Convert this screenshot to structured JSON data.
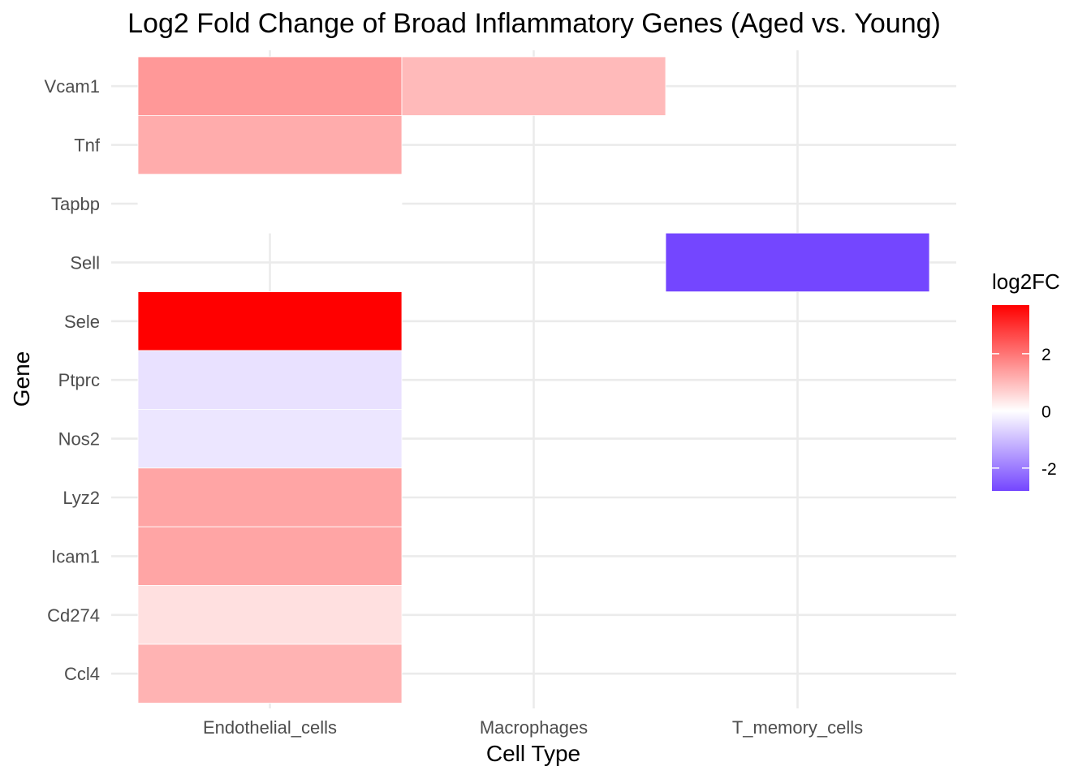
{
  "chart_data": {
    "type": "heatmap",
    "title": "Log2 Fold Change of Broad Inflammatory Genes (Aged vs. Young)",
    "xlabel": "Cell Type",
    "ylabel": "Gene",
    "x_categories": [
      "Endothelial_cells",
      "Macrophages",
      "T_memory_cells"
    ],
    "y_categories": [
      "Vcam1",
      "Tnf",
      "Tapbp",
      "Sell",
      "Sele",
      "Ptprc",
      "Nos2",
      "Lyz2",
      "Icam1",
      "Cd274",
      "Ccl4"
    ],
    "cells": [
      {
        "x": "Endothelial_cells",
        "y": "Vcam1",
        "value": 1.5
      },
      {
        "x": "Macrophages",
        "y": "Vcam1",
        "value": 1.0
      },
      {
        "x": "Endothelial_cells",
        "y": "Tnf",
        "value": 1.2
      },
      {
        "x": "Endothelial_cells",
        "y": "Tapbp",
        "value": 0.0
      },
      {
        "x": "T_memory_cells",
        "y": "Sell",
        "value": -2.8
      },
      {
        "x": "Endothelial_cells",
        "y": "Sele",
        "value": 3.7
      },
      {
        "x": "Endothelial_cells",
        "y": "Ptprc",
        "value": -0.45
      },
      {
        "x": "Endothelial_cells",
        "y": "Nos2",
        "value": -0.38
      },
      {
        "x": "Endothelial_cells",
        "y": "Lyz2",
        "value": 1.3
      },
      {
        "x": "Endothelial_cells",
        "y": "Icam1",
        "value": 1.3
      },
      {
        "x": "Endothelial_cells",
        "y": "Cd274",
        "value": 0.45
      },
      {
        "x": "Endothelial_cells",
        "y": "Ccl4",
        "value": 1.1
      }
    ],
    "legend": {
      "title": "log2FC",
      "placement": "right",
      "range": [
        -2.8,
        3.7
      ],
      "ticks": [
        2,
        0,
        -2
      ],
      "tick_labels": [
        "2",
        "0",
        "-2"
      ]
    },
    "colors": {
      "low": "#7446ff",
      "mid": "#ffffff",
      "high": "#ff0000",
      "grid": "#ebebeb"
    },
    "grid": true
  }
}
